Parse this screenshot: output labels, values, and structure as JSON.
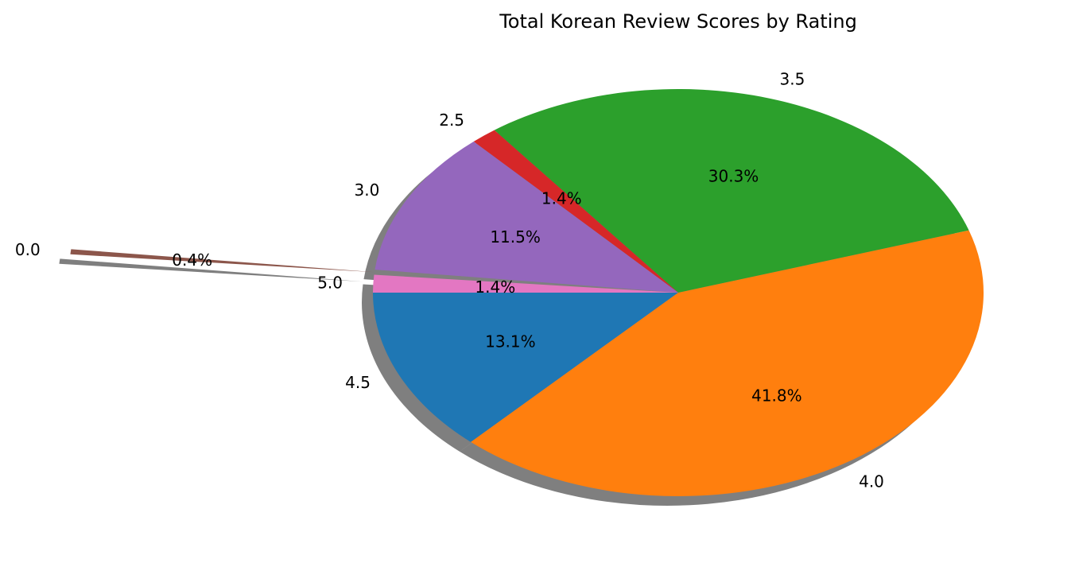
{
  "chart_data": {
    "type": "pie",
    "title": "Total Korean Review Scores by Rating",
    "slices": [
      {
        "label": "4.5",
        "value": 13.1,
        "pct_label": "13.1%",
        "color": "#1f77b4"
      },
      {
        "label": "4.0",
        "value": 41.8,
        "pct_label": "41.8%",
        "color": "#ff7f0e"
      },
      {
        "label": "3.5",
        "value": 30.3,
        "pct_label": "30.3%",
        "color": "#2ca02c"
      },
      {
        "label": "2.5",
        "value": 1.4,
        "pct_label": "1.4%",
        "color": "#d62728"
      },
      {
        "label": "3.0",
        "value": 11.5,
        "pct_label": "11.5%",
        "color": "#9467bd"
      },
      {
        "label": "0.0",
        "value": 0.4,
        "pct_label": "0.4%",
        "color": "#8c564b",
        "exploded": true
      },
      {
        "label": "5.0",
        "value": 1.4,
        "pct_label": "1.4%",
        "color": "#e377c2"
      }
    ],
    "start_angle_deg": 180,
    "direction": "counterclockwise",
    "shadow": true,
    "legend": "none"
  }
}
